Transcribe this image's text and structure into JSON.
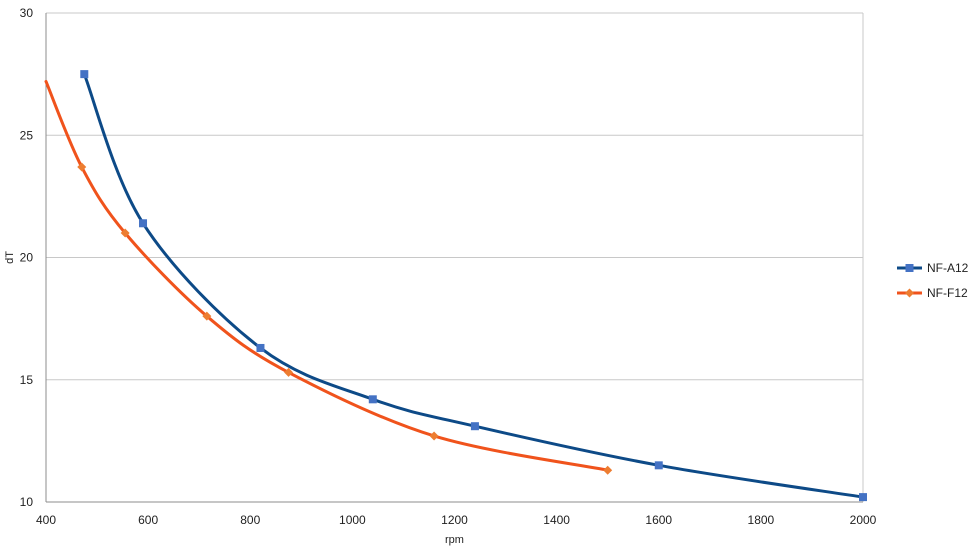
{
  "chart_data": {
    "type": "line",
    "title": "",
    "xlabel": "rpm",
    "ylabel": "dT",
    "xlim": [
      400,
      2000
    ],
    "ylim": [
      10,
      30
    ],
    "xticks": [
      400,
      600,
      800,
      1000,
      1200,
      1400,
      1600,
      1800,
      2000
    ],
    "yticks": [
      10,
      15,
      20,
      25,
      30
    ],
    "x_tick_labels": [
      "400",
      "600",
      "800",
      "1000",
      "1200",
      "1400",
      "1600",
      "1800",
      "2000"
    ],
    "y_tick_labels": [
      "10",
      "15",
      "20",
      "25",
      "30"
    ],
    "grid": "horizontal",
    "legend_position": "right",
    "smooth": true,
    "series": [
      {
        "name": "NF-A12",
        "color": "#0d4a87",
        "marker_color": "#4472c4",
        "marker": "square",
        "points": [
          {
            "x": 475,
            "y": 27.5
          },
          {
            "x": 590,
            "y": 21.4
          },
          {
            "x": 820,
            "y": 16.3
          },
          {
            "x": 1040,
            "y": 14.2
          },
          {
            "x": 1240,
            "y": 13.1
          },
          {
            "x": 1600,
            "y": 11.5
          },
          {
            "x": 2000,
            "y": 10.2
          }
        ]
      },
      {
        "name": "NF-F12",
        "color": "#f0531c",
        "marker_color": "#ed7d31",
        "marker": "diamond",
        "points": [
          {
            "x": 400,
            "y": 27.2
          },
          {
            "x": 470,
            "y": 23.7
          },
          {
            "x": 555,
            "y": 21.0
          },
          {
            "x": 715,
            "y": 17.6
          },
          {
            "x": 875,
            "y": 15.3
          },
          {
            "x": 1160,
            "y": 12.7
          },
          {
            "x": 1500,
            "y": 11.3
          }
        ]
      }
    ]
  }
}
